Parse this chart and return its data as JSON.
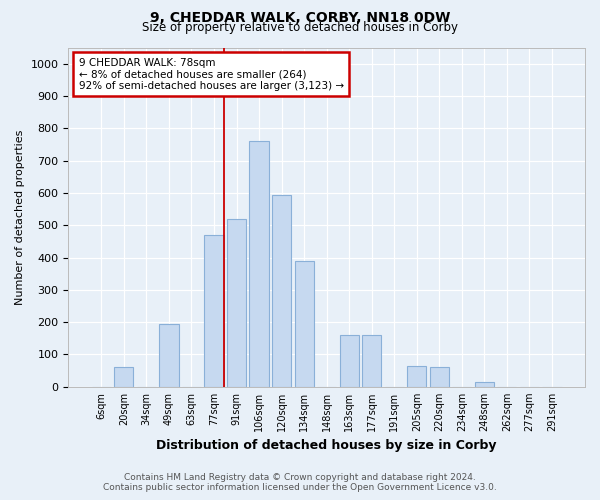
{
  "title1": "9, CHEDDAR WALK, CORBY, NN18 0DW",
  "title2": "Size of property relative to detached houses in Corby",
  "xlabel": "Distribution of detached houses by size in Corby",
  "ylabel": "Number of detached properties",
  "categories": [
    "6sqm",
    "20sqm",
    "34sqm",
    "49sqm",
    "63sqm",
    "77sqm",
    "91sqm",
    "106sqm",
    "120sqm",
    "134sqm",
    "148sqm",
    "163sqm",
    "177sqm",
    "191sqm",
    "205sqm",
    "220sqm",
    "234sqm",
    "248sqm",
    "262sqm",
    "277sqm",
    "291sqm"
  ],
  "values": [
    0,
    60,
    0,
    195,
    0,
    470,
    520,
    760,
    595,
    390,
    0,
    160,
    160,
    0,
    65,
    60,
    0,
    15,
    0,
    0,
    0
  ],
  "bar_color": "#c6d9f0",
  "bar_edge_color": "#8ab0d8",
  "vline_index": 5,
  "annotation_text_line1": "9 CHEDDAR WALK: 78sqm",
  "annotation_text_line2": "← 8% of detached houses are smaller (264)",
  "annotation_text_line3": "92% of semi-detached houses are larger (3,123) →",
  "vline_color": "#cc0000",
  "annotation_box_facecolor": "#ffffff",
  "annotation_box_edgecolor": "#cc0000",
  "footer_line1": "Contains HM Land Registry data © Crown copyright and database right 2024.",
  "footer_line2": "Contains public sector information licensed under the Open Government Licence v3.0.",
  "bg_color": "#e8f0f8",
  "plot_bg_color": "#e8f0f8",
  "grid_color": "#ffffff",
  "ylim": [
    0,
    1050
  ],
  "yticks": [
    0,
    100,
    200,
    300,
    400,
    500,
    600,
    700,
    800,
    900,
    1000
  ]
}
